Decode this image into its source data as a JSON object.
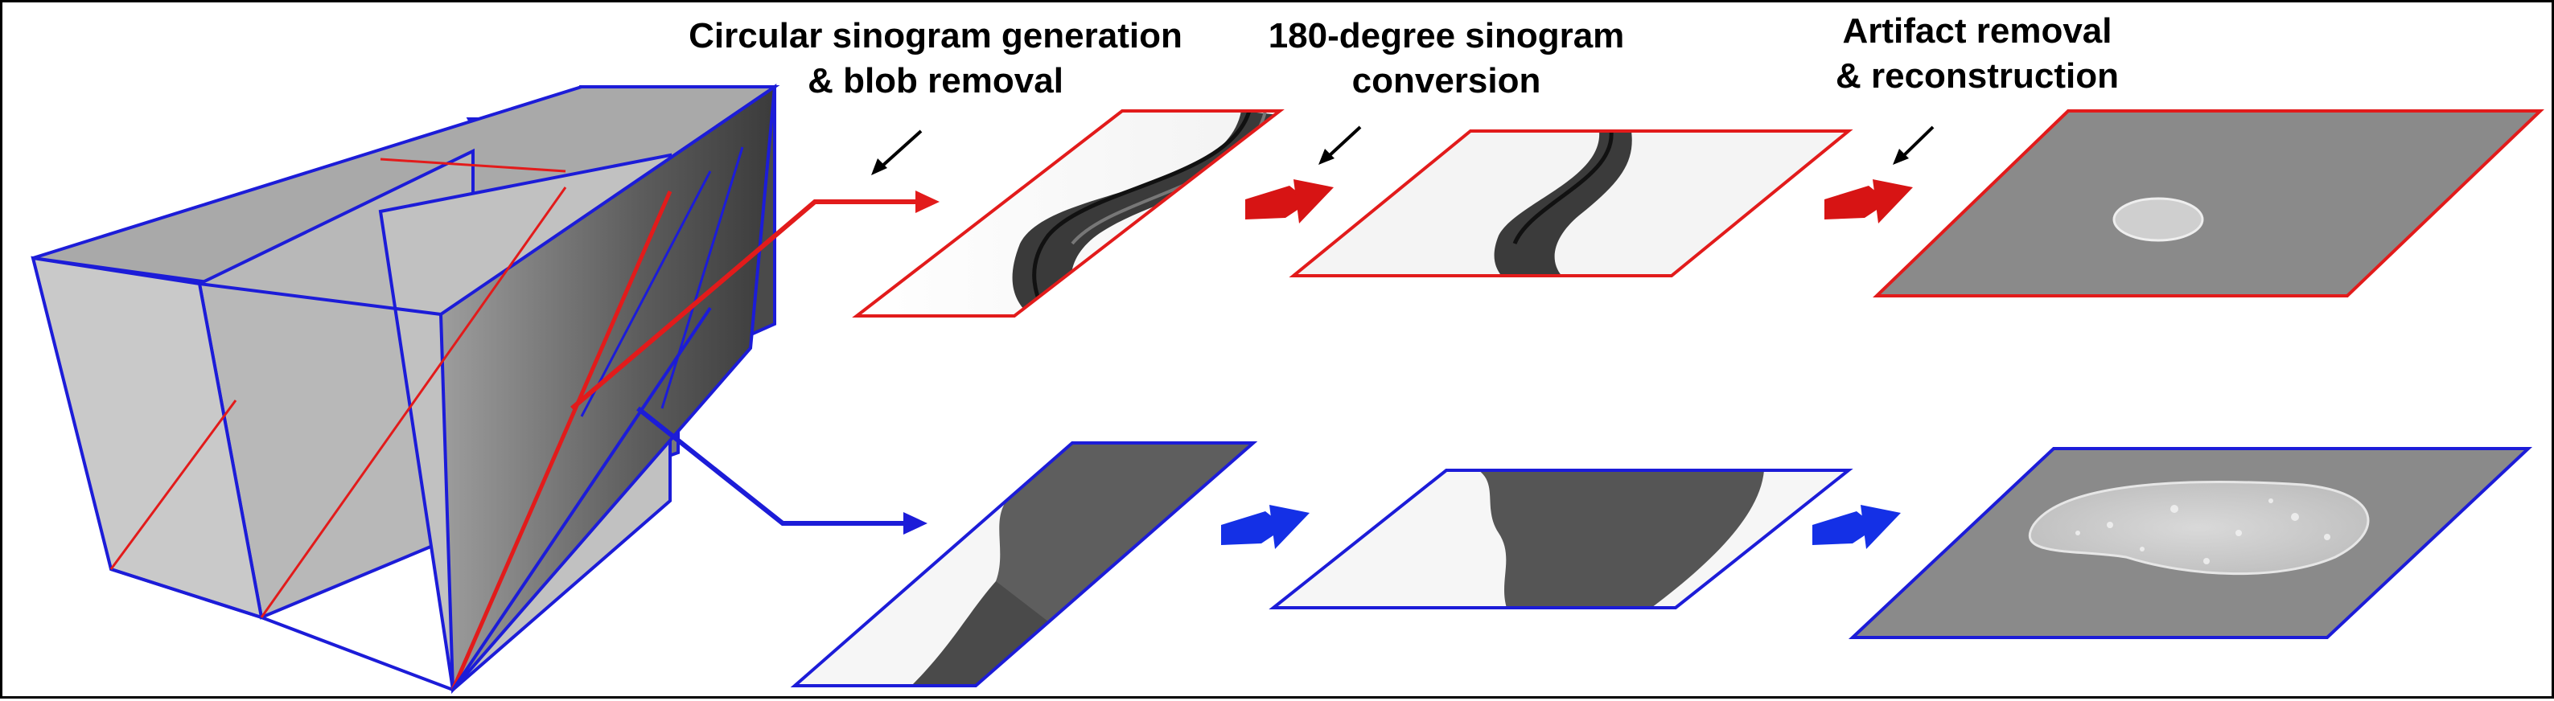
{
  "steps": [
    {
      "line1": "Circular sinogram generation",
      "line2": "& blob removal"
    },
    {
      "line1": "180-degree sinogram",
      "line2": "conversion"
    },
    {
      "line1": "Artifact removal",
      "line2": "& reconstruction"
    }
  ],
  "rows": [
    {
      "name": "top-row",
      "color": "#e21b1b"
    },
    {
      "name": "bottom-row",
      "color": "#1c1cd8"
    }
  ],
  "colors": {
    "top": "#e21b1b",
    "bottom": "#1c1cd8",
    "arrow_top": "#d71414",
    "arrow_bottom": "#1430e6",
    "volume_face": "#b3b3b3",
    "recon_background": "#8a8a8a",
    "recon_sample": "#d0d0d0"
  }
}
